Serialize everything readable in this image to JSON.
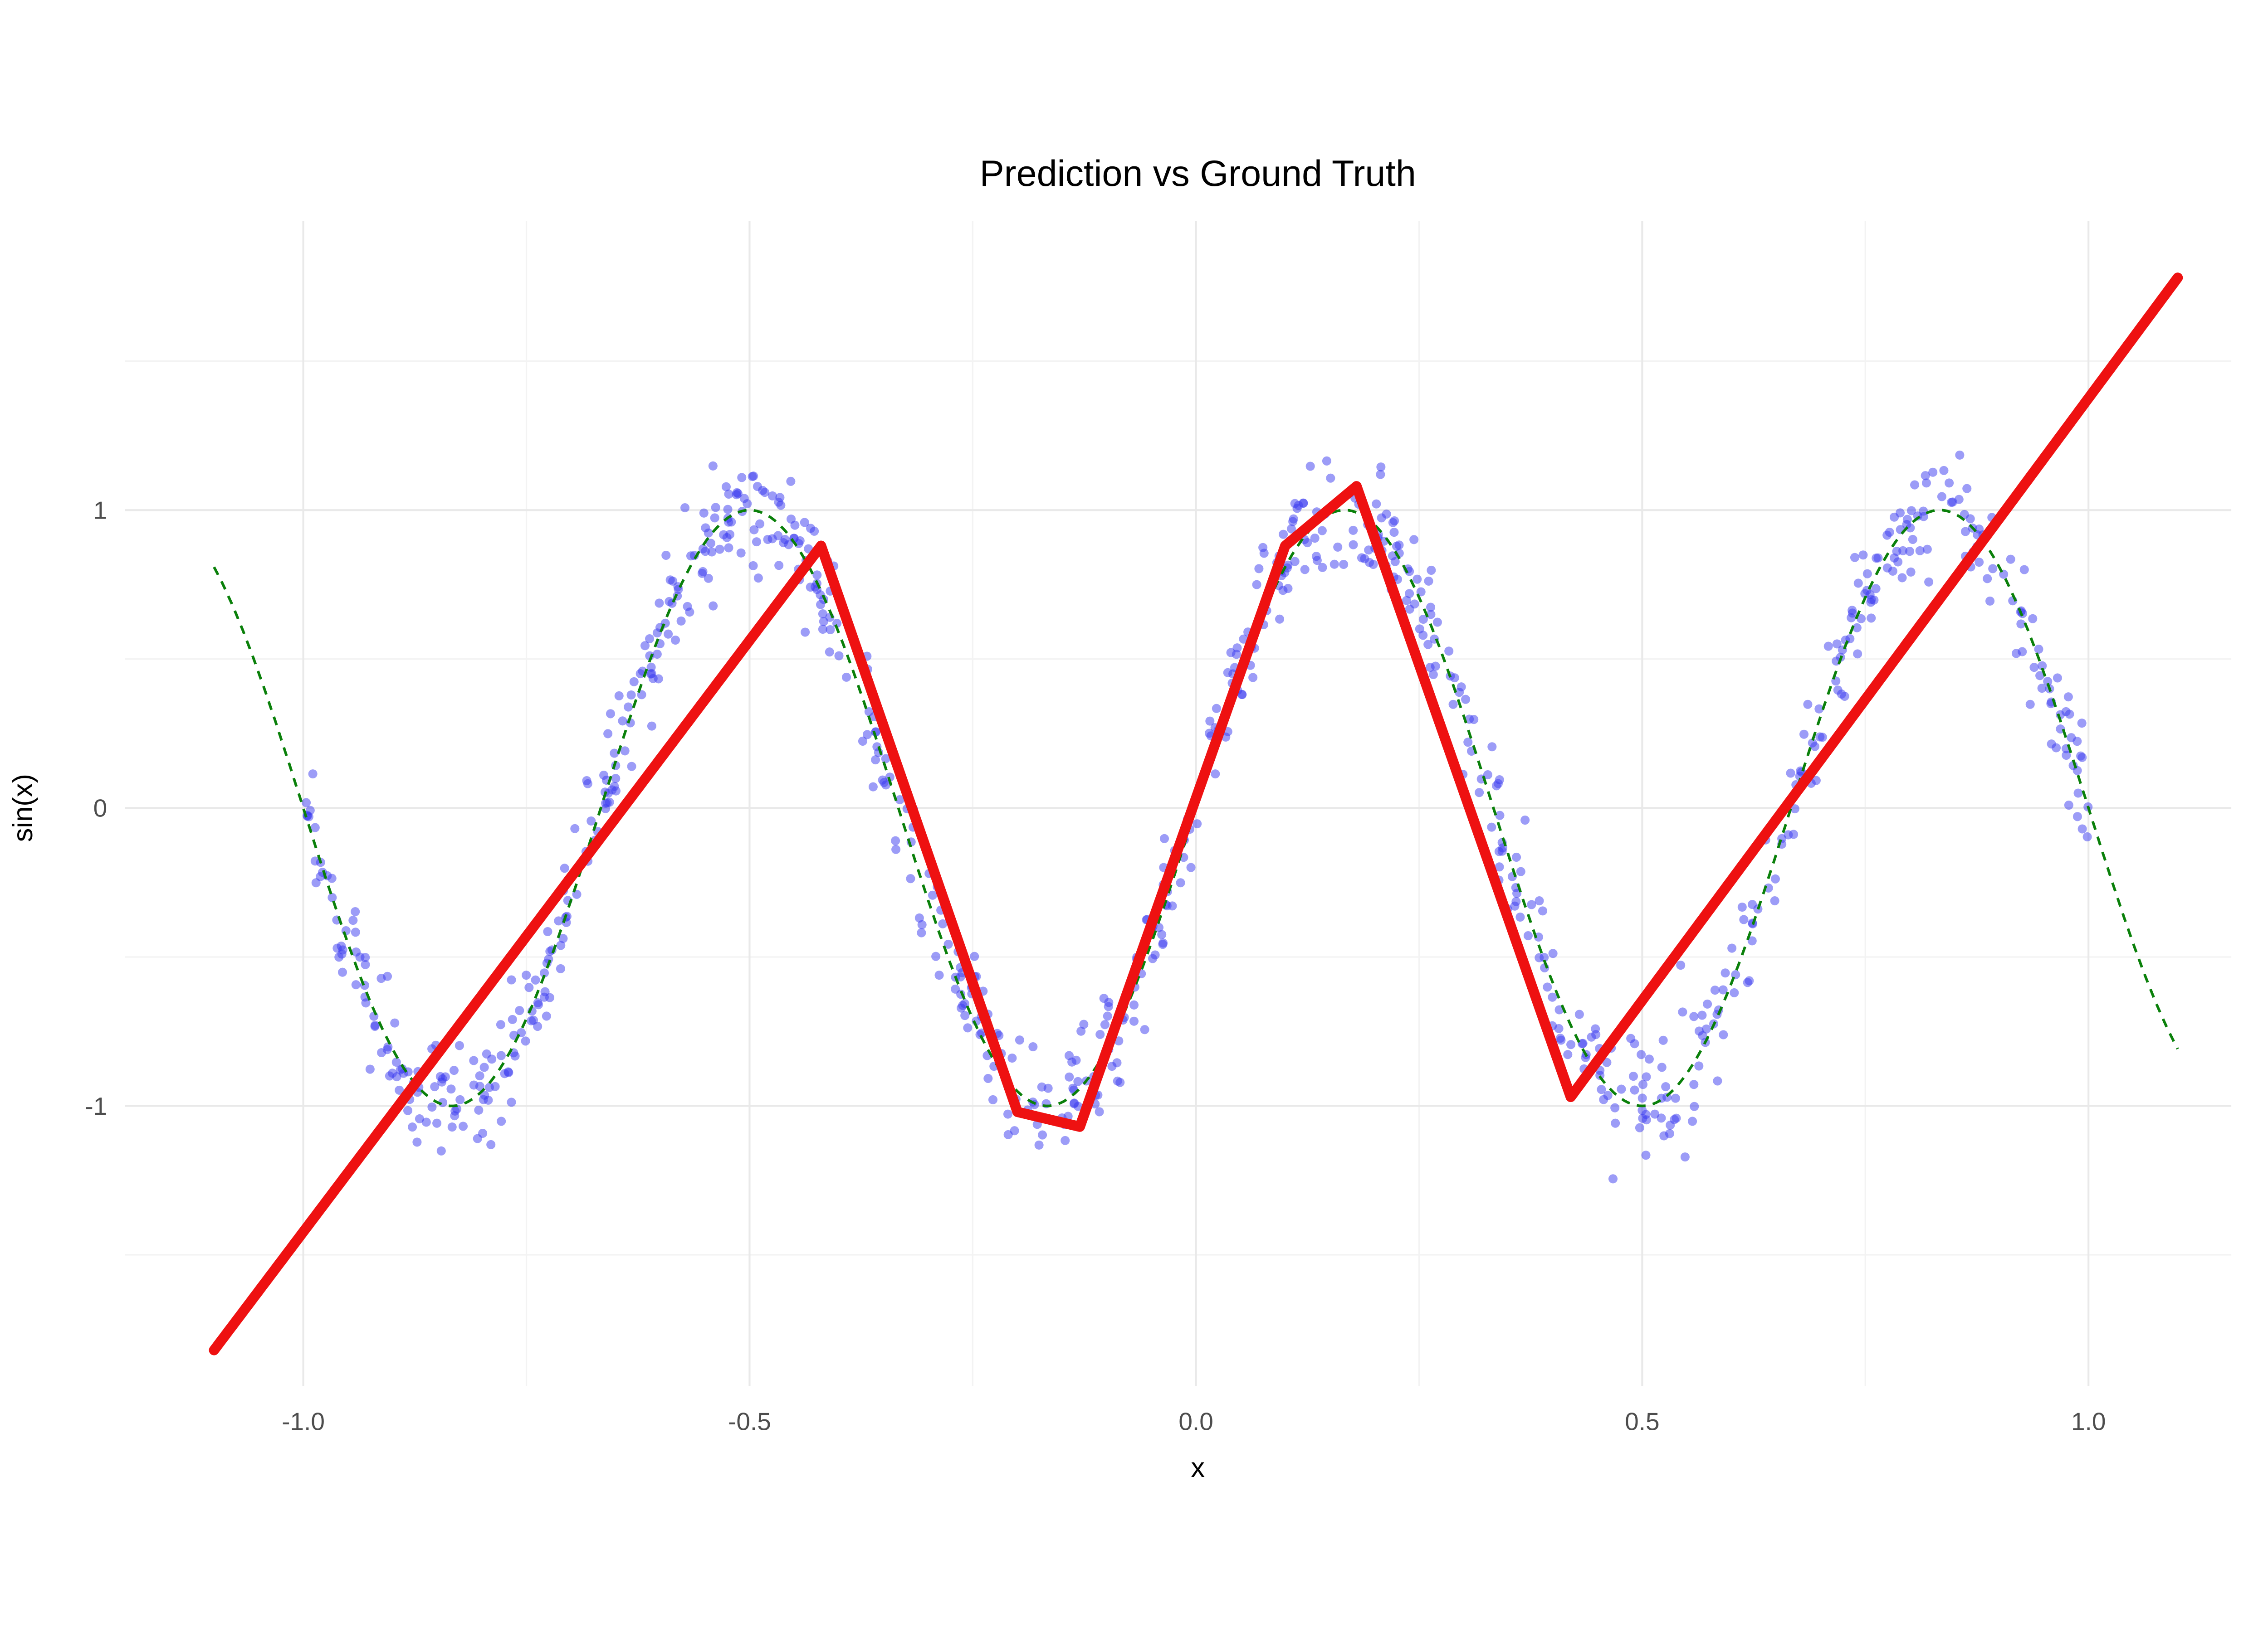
{
  "chart_data": {
    "type": "scatter",
    "title": "Prediction vs Ground Truth",
    "xlabel": "x",
    "ylabel": "sin(x)",
    "background": "#FFFFFF",
    "grid": true,
    "legend": "none",
    "xlim": [
      -1.2,
      1.16
    ],
    "ylim": [
      -1.94,
      1.97
    ],
    "x_ticks": [
      -1.0,
      -0.5,
      0.0,
      0.5,
      1.0
    ],
    "x_tick_labels": [
      "-1.0",
      "-0.5",
      "0.0",
      "0.5",
      "1.0"
    ],
    "y_ticks": [
      -1,
      0,
      1
    ],
    "y_tick_labels": [
      "-1",
      "0",
      "1"
    ],
    "x_minor_ticks": [
      -0.75,
      -0.25,
      0.25,
      0.75
    ],
    "y_minor_ticks": [
      -1.5,
      -0.5,
      0.5,
      1.5
    ],
    "grid_major_color": "#E9E9E9",
    "grid_minor_color": "#F3F3F3",
    "series": [
      {
        "name": "observations",
        "type": "scatter",
        "color": "#3A3AF0",
        "opacity": 0.5,
        "marker_radius": 3.1,
        "model": "y = sin(3*pi*x) + gaussian_noise",
        "n_points": 880,
        "x_range": [
          -1.0,
          1.0
        ],
        "noise_sd": 0.1,
        "seed": 42
      },
      {
        "name": "ground truth",
        "type": "line",
        "style": "dashed",
        "color": "#0A800A",
        "width": 1.8,
        "fn": "sin(3*pi*x)",
        "frequency_factor": 3,
        "x_range": [
          -1.1,
          1.1
        ]
      },
      {
        "name": "prediction",
        "type": "line",
        "style": "solid",
        "color": "#EE1111",
        "width": 7,
        "points": [
          [
            -1.1,
            -1.82
          ],
          [
            -0.42,
            0.88
          ],
          [
            -0.2,
            -1.02
          ],
          [
            -0.13,
            -1.07
          ],
          [
            0.1,
            0.88
          ],
          [
            0.18,
            1.08
          ],
          [
            0.42,
            -0.97
          ],
          [
            1.1,
            1.78
          ]
        ]
      }
    ]
  }
}
